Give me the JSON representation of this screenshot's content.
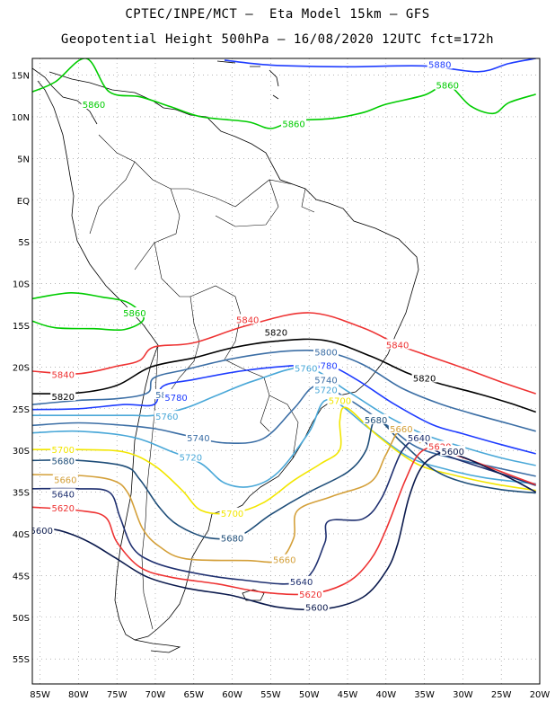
{
  "header": {
    "line1": "CPTEC/INPE/MCT –  Eta Model 15km – GFS",
    "line2": "Geopotential Height 500hPa – 16/08/2020 12UTC fct=172h"
  },
  "axes": {
    "lat_labels": [
      "15N",
      "10N",
      "5N",
      "EQ",
      "5S",
      "10S",
      "15S",
      "20S",
      "25S",
      "30S",
      "35S",
      "40S",
      "45S",
      "50S",
      "55S"
    ],
    "lat_values": [
      15,
      10,
      5,
      0,
      -5,
      -10,
      -15,
      -20,
      -25,
      -30,
      -35,
      -40,
      -45,
      -50,
      -55
    ],
    "lon_labels": [
      "85W",
      "80W",
      "75W",
      "70W",
      "65W",
      "60W",
      "55W",
      "50W",
      "45W",
      "40W",
      "35W",
      "30W",
      "25W",
      "20W"
    ],
    "lon_values": [
      -85,
      -80,
      -75,
      -70,
      -65,
      -60,
      -55,
      -50,
      -45,
      -40,
      -35,
      -30,
      -25,
      -20
    ],
    "lon_range": [
      -86,
      -20
    ],
    "lat_range": [
      -58,
      17
    ],
    "grid": "dotted"
  },
  "contours": [
    {
      "value": "5880",
      "color": "#1e3cff",
      "labels": [
        [
          -33,
          16.3
        ]
      ],
      "path": [
        [
          -61,
          16.8
        ],
        [
          -55,
          16.2
        ],
        [
          -45,
          16.0
        ],
        [
          -35,
          16.1
        ],
        [
          -28,
          15.4
        ],
        [
          -24,
          16.4
        ],
        [
          -20.5,
          17
        ]
      ]
    },
    {
      "value": "5860",
      "color": "#00cc00",
      "labels": [
        [
          -78,
          11.5
        ],
        [
          -52,
          9.2
        ],
        [
          -32,
          13.8
        ]
      ],
      "path": [
        [
          -86,
          13
        ],
        [
          -83,
          14.2
        ],
        [
          -79,
          17
        ],
        [
          -76,
          13
        ],
        [
          -72,
          12.4
        ],
        [
          -68,
          11.2
        ],
        [
          -64,
          10.0
        ],
        [
          -58,
          9.4
        ],
        [
          -55,
          8.6
        ],
        [
          -52,
          9.5
        ],
        [
          -47,
          9.8
        ],
        [
          -43,
          10.5
        ],
        [
          -40,
          11.5
        ],
        [
          -35,
          12.6
        ],
        [
          -32,
          13.8
        ],
        [
          -29,
          11.3
        ],
        [
          -26,
          10.4
        ],
        [
          -24,
          11.7
        ],
        [
          -20.5,
          12.7
        ]
      ]
    },
    {
      "value": "5860",
      "color": "#00cc00",
      "labels": [
        [
          -72.7,
          -13.5
        ]
      ],
      "path": [
        [
          -86,
          -11.8
        ],
        [
          -81,
          -11.1
        ],
        [
          -77,
          -11.6
        ],
        [
          -73.5,
          -12.3
        ],
        [
          -71.5,
          -14.2
        ],
        [
          -74,
          -15.5
        ],
        [
          -78,
          -15.4
        ],
        [
          -83,
          -15.3
        ],
        [
          -86,
          -14.5
        ]
      ]
    },
    {
      "value": "5840",
      "color": "#ee3333",
      "labels": [
        [
          -82,
          -20.9
        ],
        [
          -58,
          -14.3
        ],
        [
          -38.5,
          -17.3
        ]
      ],
      "path": [
        [
          -86,
          -20.5
        ],
        [
          -80,
          -20.8
        ],
        [
          -75,
          -19.9
        ],
        [
          -72,
          -19.2
        ],
        [
          -70.2,
          -17.6
        ],
        [
          -65,
          -17.1
        ],
        [
          -58,
          -15.0
        ],
        [
          -50,
          -13.5
        ],
        [
          -43,
          -15.3
        ],
        [
          -38.5,
          -17.3
        ],
        [
          -35,
          -18.5
        ],
        [
          -30,
          -20.1
        ],
        [
          -25,
          -21.8
        ],
        [
          -20.5,
          -23.2
        ]
      ]
    },
    {
      "value": "5820",
      "color": "#000000",
      "labels": [
        [
          -82,
          -23.5
        ],
        [
          -54.3,
          -15.8
        ],
        [
          -35,
          -21.3
        ]
      ],
      "path": [
        [
          -86,
          -23.2
        ],
        [
          -80,
          -23.1
        ],
        [
          -75,
          -22.2
        ],
        [
          -70.6,
          -20.0
        ],
        [
          -65,
          -18.9
        ],
        [
          -60,
          -17.7
        ],
        [
          -54.3,
          -16.9
        ],
        [
          -48,
          -16.8
        ],
        [
          -42,
          -18.7
        ],
        [
          -37,
          -20.8
        ],
        [
          -33,
          -22.0
        ],
        [
          -28,
          -23.2
        ],
        [
          -24,
          -24.3
        ],
        [
          -20.5,
          -25.4
        ]
      ]
    },
    {
      "value": "5800",
      "color": "#3b6ea5",
      "labels": [
        [
          -68.5,
          -23.3
        ],
        [
          -47.8,
          -18.2
        ]
      ],
      "path": [
        [
          -86,
          -24.5
        ],
        [
          -80,
          -24.0
        ],
        [
          -75,
          -23.8
        ],
        [
          -71,
          -23.1
        ],
        [
          -70.2,
          -21.3
        ],
        [
          -66,
          -20.3
        ],
        [
          -60,
          -19.0
        ],
        [
          -53,
          -18.1
        ],
        [
          -47.8,
          -18.2
        ],
        [
          -43,
          -19.7
        ],
        [
          -38,
          -22.5
        ],
        [
          -33,
          -24.4
        ],
        [
          -28,
          -25.8
        ],
        [
          -24,
          -26.8
        ],
        [
          -20.5,
          -27.7
        ]
      ]
    },
    {
      "value": "5780",
      "color": "#1e3cff",
      "labels": [
        [
          -67.3,
          -23.6
        ],
        [
          -47.8,
          -19.8
        ]
      ],
      "path": [
        [
          -86,
          -25.1
        ],
        [
          -80,
          -25.0
        ],
        [
          -74,
          -24.5
        ],
        [
          -70.2,
          -24.5
        ],
        [
          -69,
          -22.3
        ],
        [
          -65,
          -21.5
        ],
        [
          -59,
          -20.5
        ],
        [
          -53,
          -19.9
        ],
        [
          -47.8,
          -19.8
        ],
        [
          -44,
          -21.4
        ],
        [
          -39,
          -24.4
        ],
        [
          -34,
          -26.9
        ],
        [
          -30,
          -28.0
        ],
        [
          -25,
          -29.3
        ],
        [
          -20.5,
          -30.4
        ]
      ]
    },
    {
      "value": "5760",
      "color": "#4aa8d8",
      "labels": [
        [
          -68.5,
          -25.9
        ],
        [
          -50.4,
          -20.1
        ]
      ],
      "path": [
        [
          -86,
          -25.8
        ],
        [
          -80,
          -25.8
        ],
        [
          -73,
          -25.8
        ],
        [
          -70.2,
          -25.8
        ],
        [
          -66,
          -24.9
        ],
        [
          -62,
          -23.4
        ],
        [
          -57,
          -21.6
        ],
        [
          -50.4,
          -20.1
        ],
        [
          -45,
          -22.9
        ],
        [
          -40,
          -25.8
        ],
        [
          -35,
          -28.1
        ],
        [
          -30,
          -29.6
        ],
        [
          -25,
          -30.9
        ],
        [
          -20.5,
          -31.8
        ]
      ]
    },
    {
      "value": "5740",
      "color": "#3b6ea5",
      "labels": [
        [
          -64.4,
          -28.5
        ],
        [
          -47.8,
          -21.5
        ]
      ],
      "path": [
        [
          -86,
          -27.0
        ],
        [
          -80,
          -26.7
        ],
        [
          -74,
          -27.0
        ],
        [
          -70,
          -27.4
        ],
        [
          -66,
          -28.2
        ],
        [
          -61,
          -29.1
        ],
        [
          -56,
          -28.6
        ],
        [
          -52,
          -25.0
        ],
        [
          -49,
          -22.2
        ],
        [
          -45,
          -23.8
        ],
        [
          -40,
          -26.9
        ],
        [
          -36,
          -29.6
        ],
        [
          -31,
          -31.0
        ],
        [
          -26,
          -32.0
        ],
        [
          -20.5,
          -33.1
        ]
      ]
    },
    {
      "value": "5720",
      "color": "#4aa8d8",
      "labels": [
        [
          -65.4,
          -30.8
        ],
        [
          -47.8,
          -22.7
        ]
      ],
      "path": [
        [
          -86,
          -27.9
        ],
        [
          -80,
          -27.7
        ],
        [
          -73,
          -28.4
        ],
        [
          -68,
          -30.1
        ],
        [
          -64,
          -31.6
        ],
        [
          -61,
          -33.9
        ],
        [
          -57.5,
          -34.3
        ],
        [
          -54,
          -32.6
        ],
        [
          -50,
          -27.8
        ],
        [
          -47.5,
          -23.9
        ],
        [
          -42,
          -27.5
        ],
        [
          -37,
          -30.8
        ],
        [
          -32,
          -32.3
        ],
        [
          -27,
          -33.3
        ],
        [
          -20.5,
          -34.0
        ]
      ]
    },
    {
      "value": "5700",
      "color": "#f2e600",
      "labels": [
        [
          -82,
          -29.9
        ],
        [
          -46,
          -24.0
        ],
        [
          -60,
          -37.5
        ]
      ],
      "path": [
        [
          -86,
          -29.9
        ],
        [
          -80,
          -29.9
        ],
        [
          -74,
          -30.2
        ],
        [
          -70,
          -31.9
        ],
        [
          -66.5,
          -34.8
        ],
        [
          -64,
          -37.2
        ],
        [
          -60,
          -37.5
        ],
        [
          -56,
          -36.3
        ],
        [
          -52,
          -33.6
        ],
        [
          -48.5,
          -31.6
        ],
        [
          -46,
          -29.9
        ],
        [
          -46,
          -26.4
        ],
        [
          -45.1,
          -24.9
        ],
        [
          -41,
          -28.3
        ],
        [
          -36,
          -31.6
        ],
        [
          -31,
          -33.0
        ],
        [
          -26,
          -34.0
        ],
        [
          -20.5,
          -34.8
        ]
      ]
    },
    {
      "value": "5680",
      "color": "#1f4e79",
      "labels": [
        [
          -82,
          -31.2
        ],
        [
          -60,
          -40.5
        ],
        [
          -41.3,
          -26.3
        ]
      ],
      "path": [
        [
          -86,
          -31.2
        ],
        [
          -80,
          -31.2
        ],
        [
          -74,
          -31.9
        ],
        [
          -72,
          -33.5
        ],
        [
          -69.5,
          -36.8
        ],
        [
          -67,
          -39.0
        ],
        [
          -63,
          -40.5
        ],
        [
          -59,
          -40.2
        ],
        [
          -55,
          -37.7
        ],
        [
          -50,
          -35.0
        ],
        [
          -45,
          -32.6
        ],
        [
          -42.6,
          -30.0
        ],
        [
          -41.3,
          -26.3
        ],
        [
          -38,
          -29.0
        ],
        [
          -34,
          -32.2
        ],
        [
          -30,
          -33.8
        ],
        [
          -25,
          -34.7
        ],
        [
          -20.5,
          -35.1
        ]
      ]
    },
    {
      "value": "5660",
      "color": "#d4a03a",
      "labels": [
        [
          -81.7,
          -33.5
        ],
        [
          -53.2,
          -43.1
        ],
        [
          -38,
          -27.4
        ]
      ],
      "path": [
        [
          -86,
          -32.9
        ],
        [
          -80,
          -33.0
        ],
        [
          -75.5,
          -33.6
        ],
        [
          -73.5,
          -35.2
        ],
        [
          -71.7,
          -39.3
        ],
        [
          -69.5,
          -41.5
        ],
        [
          -66,
          -43.0
        ],
        [
          -58,
          -43.2
        ],
        [
          -54,
          -43.2
        ],
        [
          -52,
          -40.5
        ],
        [
          -51.5,
          -37.2
        ],
        [
          -47,
          -35.5
        ],
        [
          -42,
          -33.8
        ],
        [
          -40,
          -30.5
        ],
        [
          -38,
          -27.4
        ],
        [
          -35.5,
          -29.1
        ]
      ]
    },
    {
      "value": "5640",
      "color": "#1f3070",
      "labels": [
        [
          -82,
          -35.2
        ],
        [
          -51,
          -45.7
        ],
        [
          -35.7,
          -28.5
        ]
      ],
      "path": [
        [
          -86,
          -34.6
        ],
        [
          -80,
          -34.6
        ],
        [
          -76,
          -35.0
        ],
        [
          -74.6,
          -38.0
        ],
        [
          -73,
          -41.6
        ],
        [
          -70.5,
          -43.3
        ],
        [
          -66,
          -44.5
        ],
        [
          -59,
          -45.5
        ],
        [
          -51,
          -45.7
        ],
        [
          -48,
          -41.2
        ],
        [
          -47.5,
          -38.5
        ],
        [
          -43,
          -38.2
        ],
        [
          -40.5,
          -35.6
        ],
        [
          -38,
          -30.2
        ],
        [
          -35.7,
          -28.5
        ],
        [
          -34,
          -29.8
        ],
        [
          -31,
          -31.0
        ],
        [
          -25,
          -32.8
        ],
        [
          -20.5,
          -34.2
        ]
      ]
    },
    {
      "value": "5620",
      "color": "#ee3333",
      "labels": [
        [
          -82,
          -36.9
        ],
        [
          -49.8,
          -47.2
        ],
        [
          -33,
          -29.5
        ]
      ],
      "path": [
        [
          -86,
          -36.8
        ],
        [
          -80,
          -37.2
        ],
        [
          -76.5,
          -38.0
        ],
        [
          -75,
          -41.0
        ],
        [
          -72,
          -44.0
        ],
        [
          -68,
          -45.2
        ],
        [
          -62,
          -46.0
        ],
        [
          -56,
          -47.0
        ],
        [
          -49.8,
          -47.2
        ],
        [
          -45,
          -45.8
        ],
        [
          -42,
          -43.1
        ],
        [
          -40,
          -39.5
        ],
        [
          -37.5,
          -33.6
        ],
        [
          -35.6,
          -30.3
        ],
        [
          -33,
          -29.5
        ],
        [
          -31,
          -30.5
        ],
        [
          -28,
          -31.5
        ],
        [
          -24,
          -32.9
        ],
        [
          -20.5,
          -34.1
        ]
      ]
    },
    {
      "value": "5600",
      "color": "#0b1a4d",
      "labels": [
        [
          -84.8,
          -39.6
        ],
        [
          -49,
          -48.8
        ],
        [
          -31.3,
          -30.1
        ]
      ],
      "path": [
        [
          -86,
          -39.4
        ],
        [
          -83,
          -39.5
        ],
        [
          -80.5,
          -40.2
        ],
        [
          -78,
          -41.3
        ],
        [
          -75,
          -43.0
        ],
        [
          -71,
          -45.2
        ],
        [
          -66,
          -46.5
        ],
        [
          -60,
          -47.4
        ],
        [
          -54,
          -48.8
        ],
        [
          -48,
          -49.0
        ],
        [
          -43,
          -47.6
        ],
        [
          -40,
          -44.5
        ],
        [
          -38.5,
          -41.3
        ],
        [
          -37,
          -35.6
        ],
        [
          -35.2,
          -31.8
        ],
        [
          -32.5,
          -30.2
        ],
        [
          -30,
          -30.8
        ],
        [
          -27,
          -32.0
        ],
        [
          -23.5,
          -33.5
        ],
        [
          -20.5,
          -35.0
        ]
      ]
    }
  ]
}
